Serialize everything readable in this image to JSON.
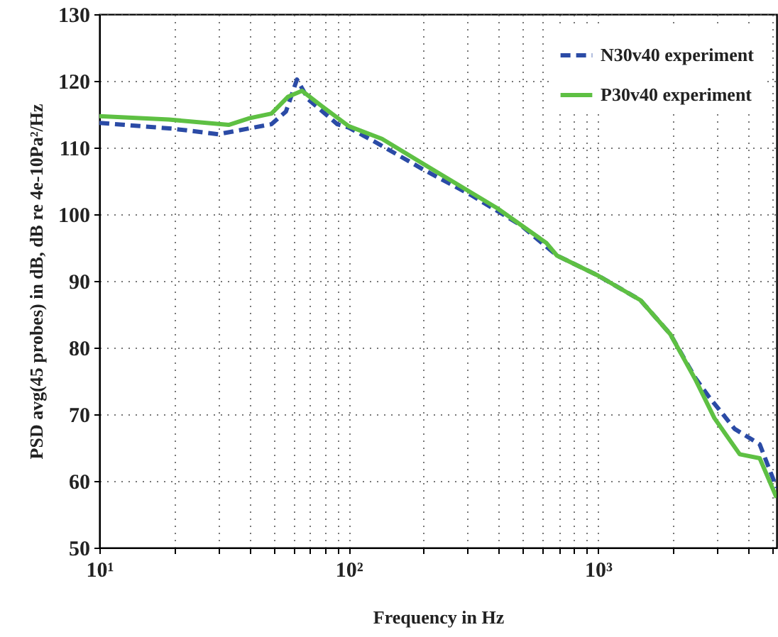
{
  "chart_data": {
    "type": "line",
    "xlabel": "Frequency in Hz",
    "ylabel": "PSD avg(45 probes) in dB, dB re 4e-10Pa²/Hz",
    "log": "x",
    "grid": true,
    "legend": "top right",
    "xlim": [
      10,
      5200
    ],
    "ylim": [
      50,
      130
    ],
    "xticks": [
      {
        "value": 10,
        "label": "10¹"
      },
      {
        "value": 20,
        "label": null
      },
      {
        "value": 30,
        "label": null
      },
      {
        "value": 40,
        "label": null
      },
      {
        "value": 50,
        "label": null
      },
      {
        "value": 60,
        "label": null
      },
      {
        "value": 70,
        "label": null
      },
      {
        "value": 80,
        "label": null
      },
      {
        "value": 90,
        "label": null
      },
      {
        "value": 100,
        "label": "10²"
      },
      {
        "value": 200,
        "label": null
      },
      {
        "value": 300,
        "label": null
      },
      {
        "value": 400,
        "label": null
      },
      {
        "value": 500,
        "label": null
      },
      {
        "value": 600,
        "label": null
      },
      {
        "value": 700,
        "label": null
      },
      {
        "value": 800,
        "label": null
      },
      {
        "value": 900,
        "label": null
      },
      {
        "value": 1000,
        "label": "10³"
      },
      {
        "value": 2000,
        "label": null
      },
      {
        "value": 3000,
        "label": null
      },
      {
        "value": 4000,
        "label": null
      },
      {
        "value": 5000,
        "label": null
      }
    ],
    "yticks": [
      50,
      60,
      70,
      80,
      90,
      100,
      110,
      120,
      130
    ],
    "series": [
      {
        "name": "N30v40 experiment",
        "color": "#2b4ba6",
        "line_style": "dashed",
        "x": [
          10,
          20,
          30,
          49,
          56,
          62,
          69,
          90,
          100,
          131,
          197,
          312,
          492,
          684,
          1000,
          1480,
          1950,
          2450,
          2800,
          3530,
          4450,
          5200
        ],
        "values": [
          113.7,
          112.8,
          112.0,
          113.5,
          115.4,
          120.2,
          117.2,
          113.5,
          113.0,
          110.6,
          106.8,
          102.8,
          98.3,
          93.8,
          90.8,
          87.1,
          82,
          75.5,
          72.5,
          67.8,
          65.5,
          59
        ]
      },
      {
        "name": "P30v40 experiment",
        "color": "#5ec043",
        "line_style": "solid",
        "x": [
          10,
          19,
          33,
          40,
          49,
          57,
          65,
          78,
          100,
          136,
          215,
          394,
          620,
          684,
          1000,
          1480,
          1950,
          2450,
          2930,
          3700,
          4450,
          5200
        ],
        "values": [
          114.7,
          114.2,
          113.4,
          114.4,
          115.1,
          117.6,
          118.5,
          116.2,
          113.2,
          111.3,
          106.8,
          100.9,
          95.7,
          93.8,
          90.8,
          87.1,
          82,
          75.3,
          69.4,
          64,
          63.4,
          57.5
        ]
      }
    ]
  }
}
